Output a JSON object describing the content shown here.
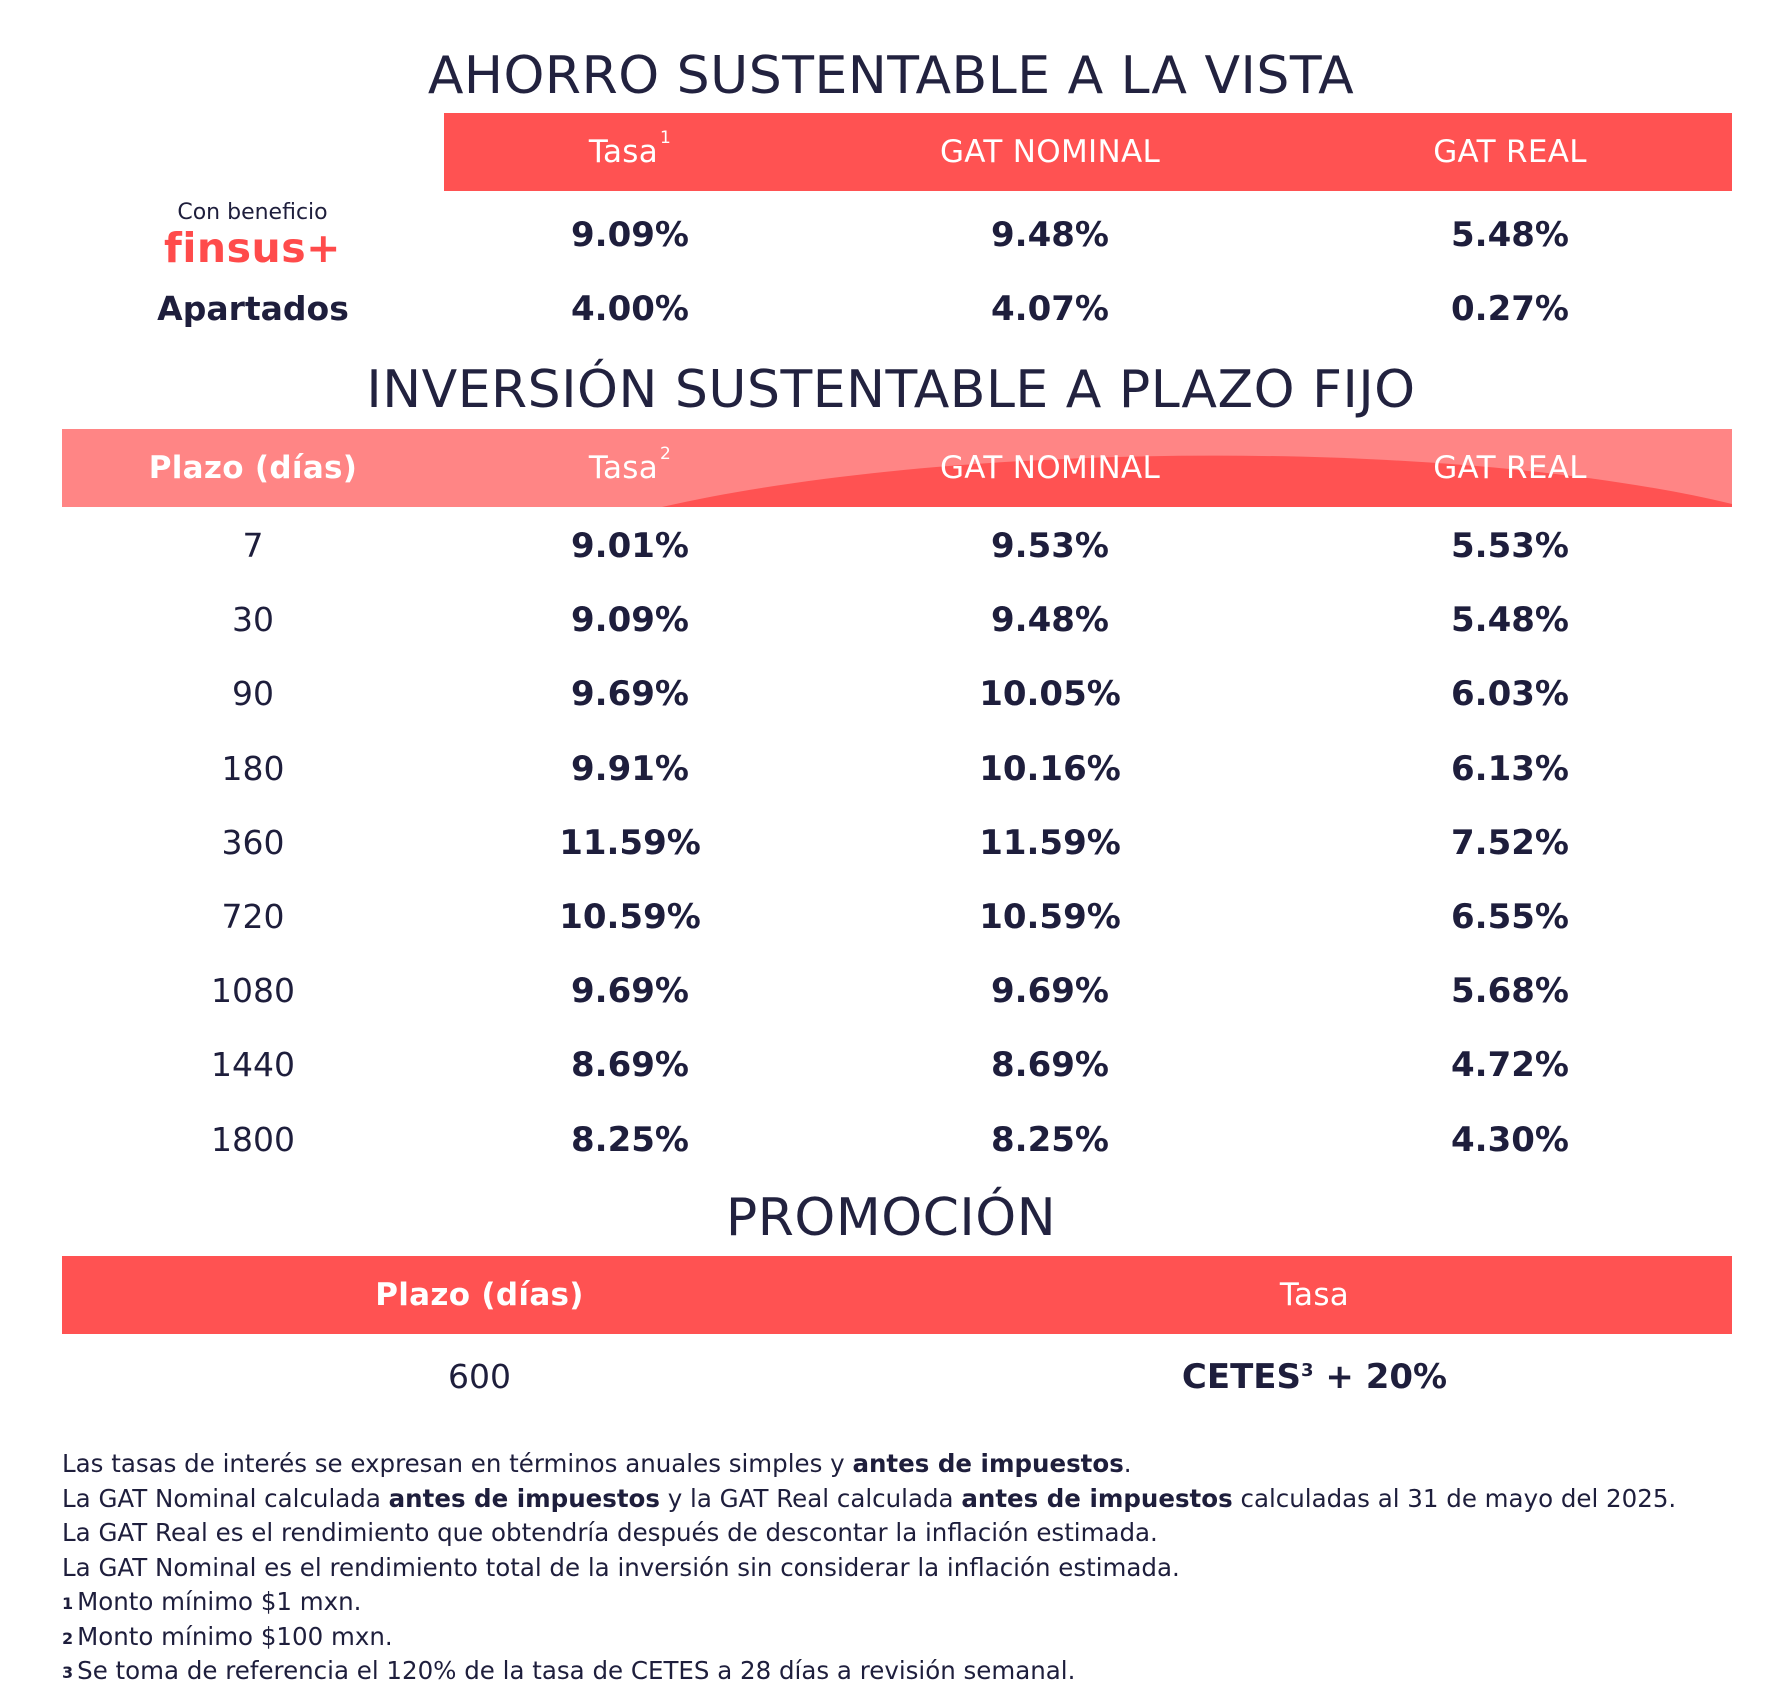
{
  "ahorro": {
    "title": "AHORRO SUSTENTABLE A LA VISTA",
    "headers": {
      "tasa": "Tasa",
      "tasa_sup": "1",
      "gat_nominal": "GAT NOMINAL",
      "gat_real": "GAT REAL"
    },
    "brand": {
      "small": "Con beneficio",
      "logo": "finsus+"
    },
    "rows": [
      {
        "label": "",
        "tasa": "9.09%",
        "gat_nominal": "9.48%",
        "gat_real": "5.48%"
      },
      {
        "label": "Apartados",
        "tasa": "4.00%",
        "gat_nominal": "4.07%",
        "gat_real": "0.27%"
      }
    ]
  },
  "inversion": {
    "title": "INVERSIÓN SUSTENTABLE A PLAZO FIJO",
    "headers": {
      "plazo": "Plazo (días)",
      "tasa": "Tasa",
      "tasa_sup": "2",
      "gat_nominal": "GAT NOMINAL",
      "gat_real": "GAT REAL"
    },
    "rows": [
      {
        "plazo": "7",
        "tasa": "9.01%",
        "gat_nominal": "9.53%",
        "gat_real": "5.53%"
      },
      {
        "plazo": "30",
        "tasa": "9.09%",
        "gat_nominal": "9.48%",
        "gat_real": "5.48%"
      },
      {
        "plazo": "90",
        "tasa": "9.69%",
        "gat_nominal": "10.05%",
        "gat_real": "6.03%"
      },
      {
        "plazo": "180",
        "tasa": "9.91%",
        "gat_nominal": "10.16%",
        "gat_real": "6.13%"
      },
      {
        "plazo": "360",
        "tasa": "11.59%",
        "gat_nominal": "11.59%",
        "gat_real": "7.52%"
      },
      {
        "plazo": "720",
        "tasa": "10.59%",
        "gat_nominal": "10.59%",
        "gat_real": "6.55%"
      },
      {
        "plazo": "1080",
        "tasa": "9.69%",
        "gat_nominal": "9.69%",
        "gat_real": "5.68%"
      },
      {
        "plazo": "1440",
        "tasa": "8.69%",
        "gat_nominal": "8.69%",
        "gat_real": "4.72%"
      },
      {
        "plazo": "1800",
        "tasa": "8.25%",
        "gat_nominal": "8.25%",
        "gat_real": "4.30%"
      }
    ]
  },
  "promocion": {
    "title": "PROMOCIÓN",
    "headers": {
      "plazo": "Plazo (días)",
      "tasa": "Tasa"
    },
    "row": {
      "plazo": "600",
      "tasa_pre": "CETES",
      "tasa_sup": "3",
      "tasa_post": " + 20%"
    }
  },
  "footnotes": {
    "l1_a": "Las tasas de interés se expresan en términos anuales simples y ",
    "l1_b": "antes de impuestos",
    "l1_c": ".",
    "l2_a": "La GAT Nominal calculada ",
    "l2_b": "antes de impuestos",
    "l2_c": " y la GAT Real calculada ",
    "l2_d": "antes de impuestos",
    "l2_e": " calculadas al 31 de mayo del 2025.",
    "l3": "La GAT Real es el rendimiento que obtendría después de descontar la inflación estimada.",
    "l4": "La GAT Nominal es el rendimiento total de la inversión sin considerar la inflación estimada.",
    "n1_mark": "1",
    "n1": "Monto mínimo $1 mxn.",
    "n2_mark": "2",
    "n2": "Monto mínimo $100 mxn.",
    "n3_mark": "3",
    "n3": "Se toma de referencia el 120% de la tasa de CETES a 28 días a revisión semanal."
  },
  "colors": {
    "accent_red": "#ff5252",
    "header_pink": "#ff8585",
    "text_navy": "#1e1e3c"
  }
}
